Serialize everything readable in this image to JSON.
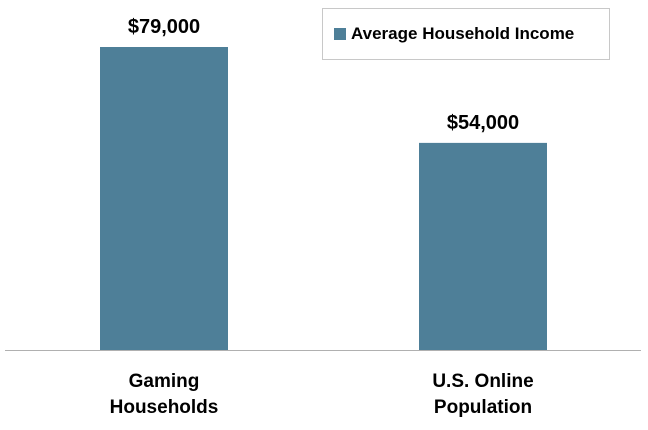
{
  "chart_data": {
    "type": "bar",
    "categories": [
      [
        "Gaming",
        "Households"
      ],
      [
        "U.S. Online",
        "Population"
      ]
    ],
    "series": [
      {
        "name": "Average Household Income",
        "values": [
          79000,
          54000
        ],
        "data_labels": [
          "$79,000",
          "$54,000"
        ],
        "color": "#4e7f98"
      }
    ],
    "ylim": [
      0,
      100000
    ],
    "grid": false,
    "legend": "top-right"
  },
  "colors": {
    "bar": "#4e7f98",
    "axis": "#b0b0b0"
  }
}
